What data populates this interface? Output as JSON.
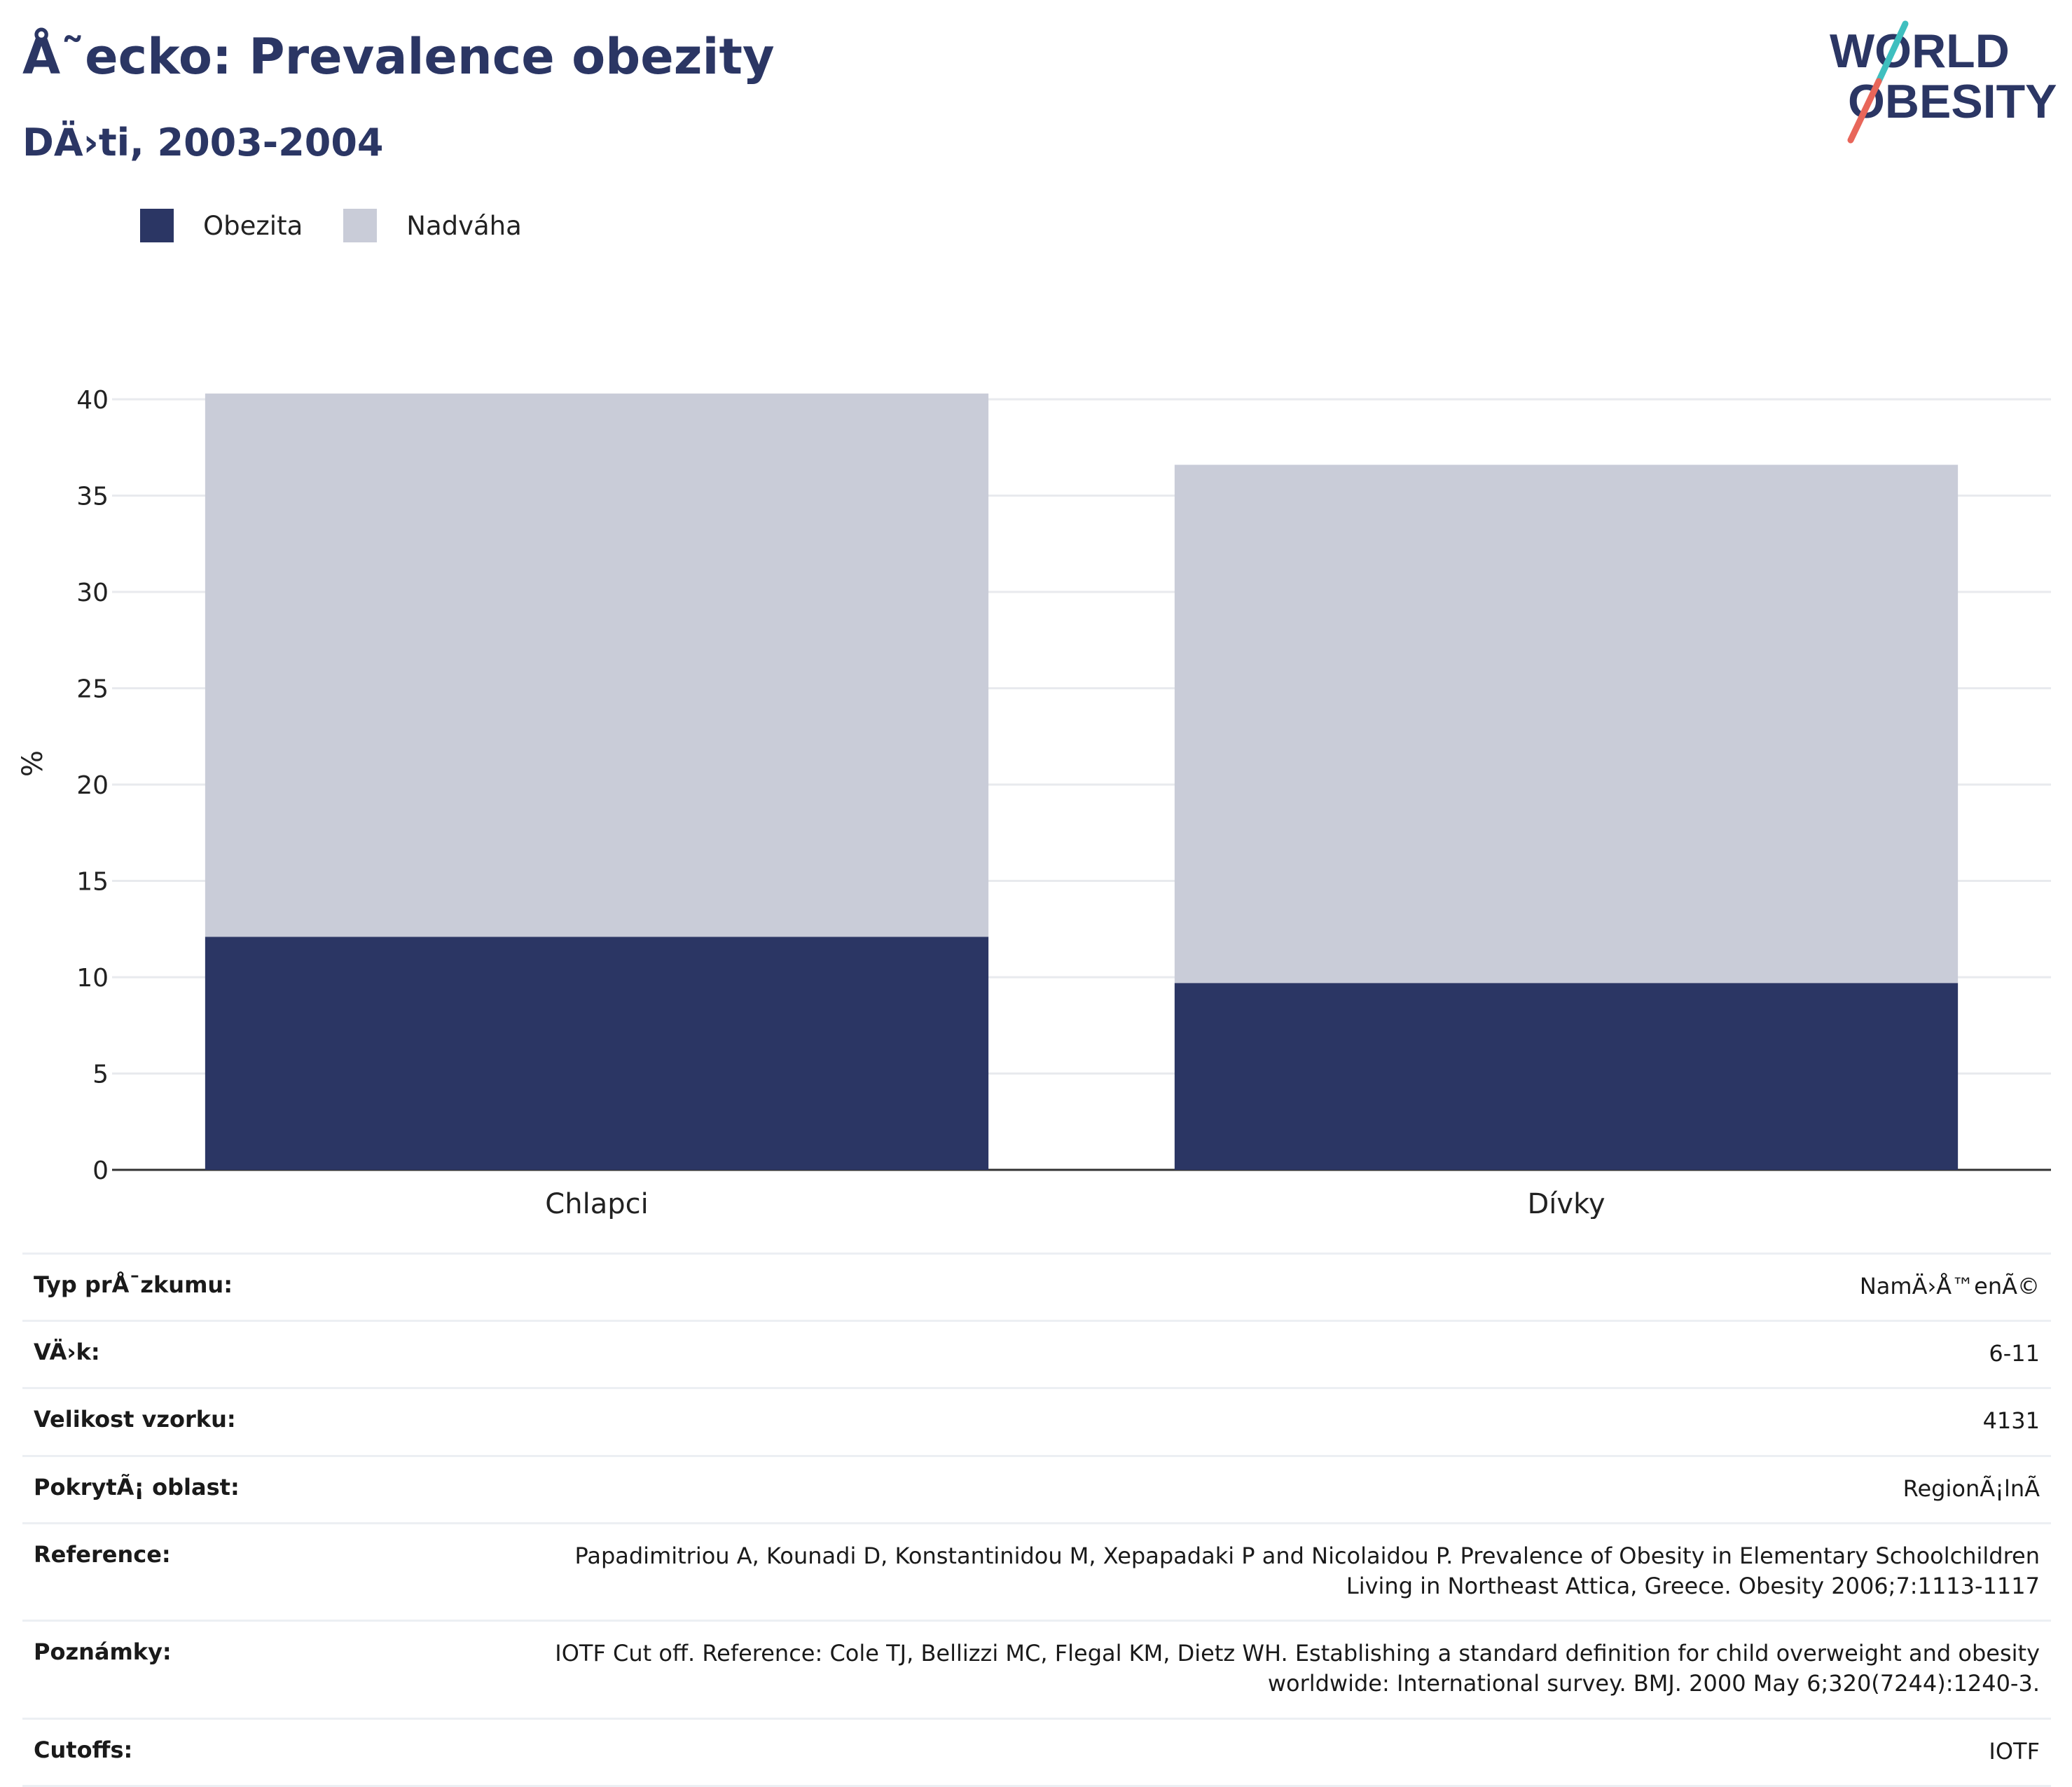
{
  "header": {
    "title": "Å˜ecko: Prevalence obezity",
    "subtitle": "DÄ›ti, 2003-2004"
  },
  "logo": {
    "line1": "WORLD",
    "line2": "OBESITY",
    "colors": {
      "text": "#2b3664",
      "slash_top": "#3fbfbf",
      "slash_bottom": "#e8665a"
    }
  },
  "legend": [
    {
      "label": "Obezita",
      "color": "#2b3664"
    },
    {
      "label": "Nadváha",
      "color": "#c9ccd8"
    }
  ],
  "chart_data": {
    "type": "bar",
    "stacked": true,
    "categories": [
      "Chlapci",
      "Dívky"
    ],
    "series": [
      {
        "name": "Obezita",
        "values": [
          12.1,
          9.7
        ],
        "color": "#2b3664"
      },
      {
        "name": "Nadváha",
        "values": [
          28.2,
          26.9
        ],
        "color": "#c9ccd8"
      }
    ],
    "ylabel": "%",
    "xlabel": "",
    "ylim": [
      0,
      40
    ],
    "yticks": [
      0,
      5,
      10,
      15,
      20,
      25,
      30,
      35,
      40
    ],
    "grid": true
  },
  "info": [
    {
      "label": "Typ prÅ¯zkumu:",
      "value": "NamÄ›Å™enÃ©"
    },
    {
      "label": "VÄ›k:",
      "value": "6-11"
    },
    {
      "label": "Velikost vzorku:",
      "value": "4131"
    },
    {
      "label": "PokrytÃ¡ oblast:",
      "value": "RegionÃ¡lnÃ"
    },
    {
      "label": "Reference:",
      "value": "Papadimitriou A, Kounadi D, Konstantinidou M, Xepapadaki P and Nicolaidou P. Prevalence of Obesity in Elementary Schoolchildren Living in Northeast Attica, Greece. Obesity 2006;7:1113-1117"
    },
    {
      "label": "Poznámky:",
      "value": "IOTF Cut off. Reference: Cole TJ, Bellizzi MC, Flegal KM, Dietz WH. Establishing a standard definition for child overweight and obesity worldwide: International survey. BMJ. 2000 May 6;320(7244):1240-3."
    },
    {
      "label": "Cutoffs:",
      "value": "IOTF"
    }
  ]
}
